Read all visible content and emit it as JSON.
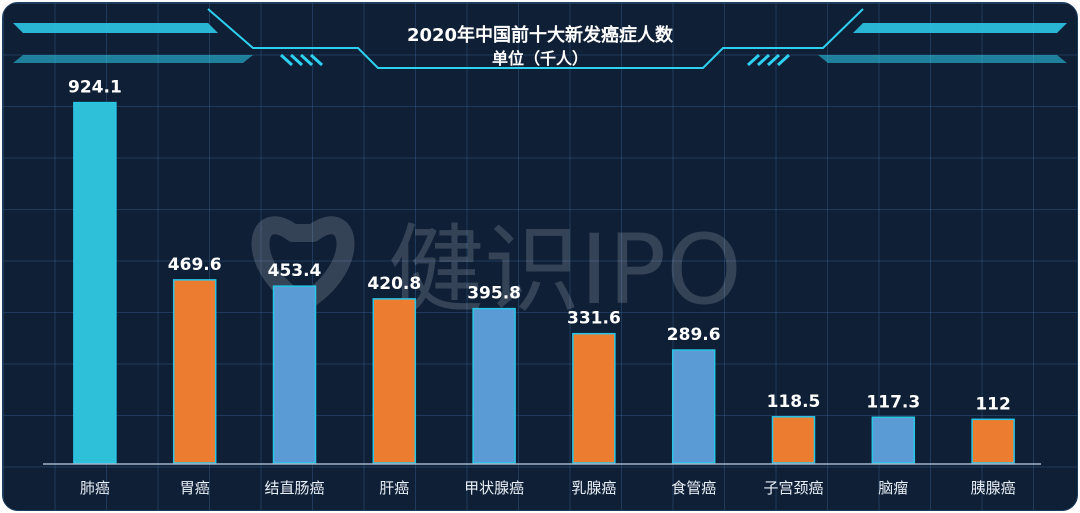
{
  "colors": {
    "background": "#0f1f36",
    "grid": "#2a5078",
    "cyan": "#2ec0d8",
    "orange": "#ec7c30",
    "blue": "#5b9bd5",
    "bar_border": "#28c6e6",
    "frame": "#2ed0f0"
  },
  "watermark": {
    "text": "健识IPO"
  },
  "chart_data": {
    "type": "bar",
    "title": "2020年中国前十大新发癌症人数",
    "subtitle": "单位（千人）",
    "xlabel": "",
    "ylabel": "",
    "ylim": [
      0,
      1000
    ],
    "grid": true,
    "categories": [
      "肺癌",
      "胃癌",
      "结直肠癌",
      "肝癌",
      "甲状腺癌",
      "乳腺癌",
      "食管癌",
      "子宫颈癌",
      "脑瘤",
      "胰腺癌"
    ],
    "values": [
      924.1,
      469.6,
      453.4,
      420.8,
      395.8,
      331.6,
      289.6,
      118.5,
      117.3,
      112
    ],
    "value_labels": [
      "924.1",
      "469.6",
      "453.4",
      "420.8",
      "395.8",
      "331.6",
      "289.6",
      "118.5",
      "117.3",
      "112"
    ],
    "bar_colors": [
      "cyan",
      "orange",
      "blue",
      "orange",
      "blue",
      "orange",
      "blue",
      "orange",
      "blue",
      "orange"
    ]
  }
}
